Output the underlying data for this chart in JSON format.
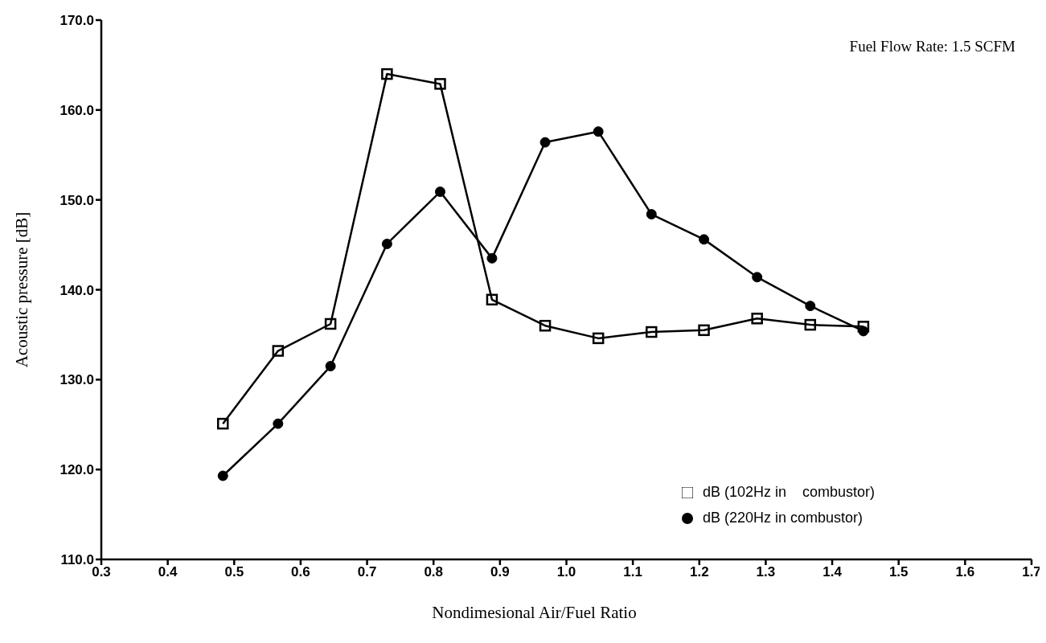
{
  "chart_data": {
    "type": "line",
    "xlabel": "Nondimesional Air/Fuel Ratio",
    "ylabel": "Acoustic pressure [dB]",
    "annotations": [
      "Fuel Flow Rate: 1.5 SCFM"
    ],
    "x": [
      0.483,
      0.566,
      0.645,
      0.73,
      0.81,
      0.888,
      0.968,
      1.048,
      1.128,
      1.207,
      1.287,
      1.367,
      1.447
    ],
    "series": [
      {
        "name": "dB (102Hz in    combustor)",
        "color": "#000000",
        "marker": "square",
        "values": [
          125.1,
          133.2,
          136.2,
          164.0,
          162.9,
          138.9,
          136.0,
          134.6,
          135.3,
          135.5,
          136.8,
          136.1,
          135.9
        ]
      },
      {
        "name": "dB (220Hz in combustor)",
        "color": "#000000",
        "marker": "circle",
        "values": [
          119.3,
          125.1,
          131.5,
          145.1,
          150.9,
          143.5,
          156.4,
          157.6,
          148.4,
          145.6,
          141.4,
          138.2,
          135.4
        ]
      }
    ],
    "xlim": [
      0.3,
      1.7
    ],
    "xticks": [
      0.3,
      0.4,
      0.5,
      0.6,
      0.7,
      0.8,
      0.9,
      {
        "value": 1.0,
        "label": "1.0"
      },
      1.1,
      1.2,
      1.3,
      1.4,
      1.5,
      1.6,
      1.7
    ],
    "ylim": [
      110,
      170
    ],
    "yticks": [
      {
        "value": 110,
        "label": "110.0"
      },
      {
        "value": 120,
        "label": "120.0"
      },
      {
        "value": 130,
        "label": "130.0"
      },
      {
        "value": 140,
        "label": "140.0"
      },
      {
        "value": 150,
        "label": "150.0"
      },
      {
        "value": 160,
        "label": "160.0"
      },
      {
        "value": 170,
        "label": "170.0"
      }
    ],
    "grid": false,
    "legend": "bottom right",
    "line_style": "solid"
  }
}
